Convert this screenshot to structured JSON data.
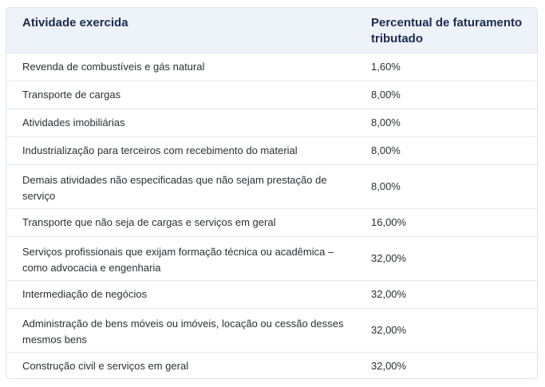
{
  "table": {
    "headers": {
      "activity": "Atividade exercida",
      "percent": "Percentual de faturamento tributado"
    },
    "rows": [
      {
        "activity": "Revenda de combustíveis e gás natural",
        "percent": "1,60%"
      },
      {
        "activity": "Transporte de cargas",
        "percent": "8,00%"
      },
      {
        "activity": "Atividades imobiliárias",
        "percent": "8,00%"
      },
      {
        "activity": "Industrialização para terceiros com recebimento do material",
        "percent": "8,00%"
      },
      {
        "activity": "Demais atividades não especificadas que não sejam prestação de serviço",
        "percent": "8,00%"
      },
      {
        "activity": "Transporte que não seja de cargas e serviços em geral",
        "percent": "16,00%"
      },
      {
        "activity": "Serviços profissionais que exijam formação técnica ou acadêmica – como advocacia e engenharia",
        "percent": "32,00%"
      },
      {
        "activity": "Intermediação de negócios",
        "percent": "32,00%"
      },
      {
        "activity": "Administração de bens móveis ou imóveis, locação ou cessão desses mesmos bens",
        "percent": "32,00%"
      },
      {
        "activity": "Construção civil e serviços em geral",
        "percent": "32,00%"
      }
    ]
  }
}
